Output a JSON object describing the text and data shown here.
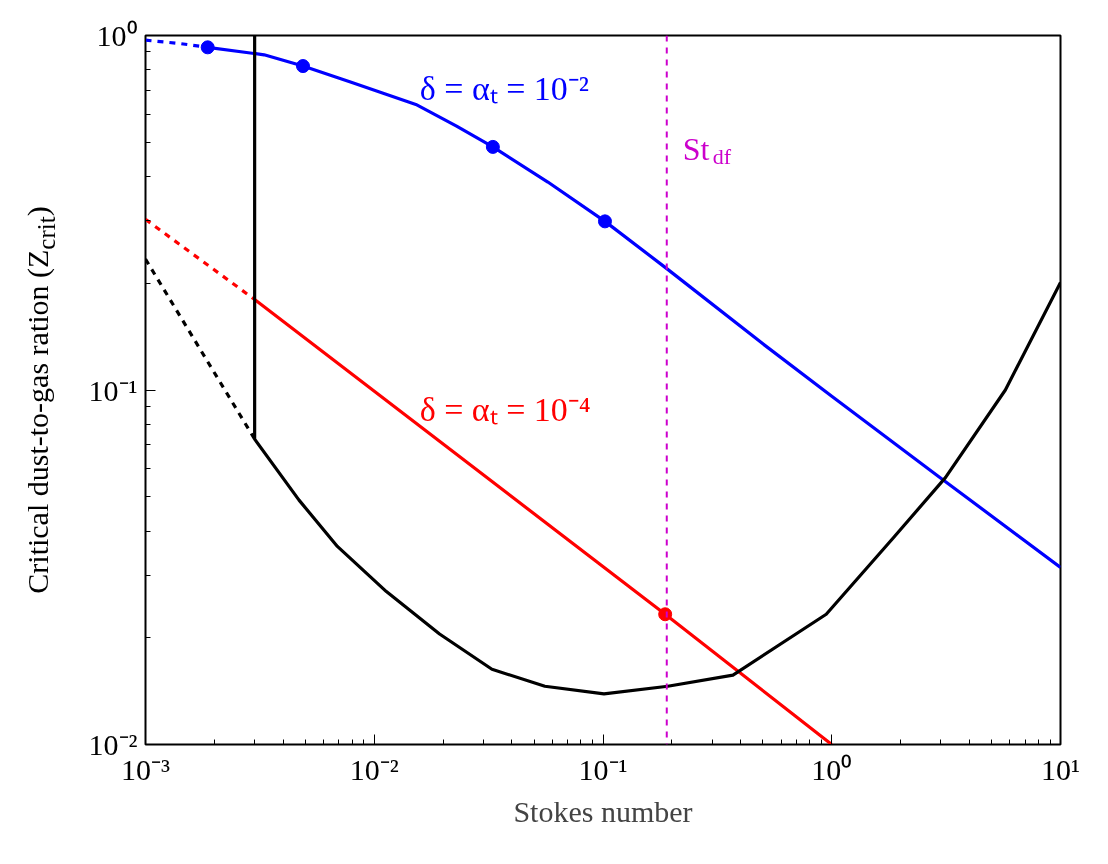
{
  "chart_data": {
    "type": "line",
    "log": "xy",
    "xlabel": "Stokes number",
    "ylabel": "Critical dust-to-gas ration (Z$_{crit}$)",
    "xlim": [
      0.001,
      10
    ],
    "ylim": [
      0.01,
      1
    ],
    "xticks": [
      {
        "value": 0.001,
        "label": "10⁻³"
      },
      {
        "value": 0.01,
        "label": "10⁻²"
      },
      {
        "value": 0.1,
        "label": "10⁻¹"
      },
      {
        "value": 1,
        "label": "10⁰"
      },
      {
        "value": 10,
        "label": "10¹"
      }
    ],
    "yticks": [
      {
        "value": 0.01,
        "label": "10⁻²"
      },
      {
        "value": 0.1,
        "label": "10⁻¹"
      },
      {
        "value": 1,
        "label": "10⁰"
      }
    ],
    "grid": false,
    "series": [
      {
        "color": "#0000ff",
        "line_style": "dashed",
        "x": [
          0.001,
          0.0014,
          0.00187
        ],
        "values": [
          0.97,
          0.95,
          0.926
        ]
      },
      {
        "name": "δ = αₜ = 10⁻²",
        "color": "#0000ff",
        "line_style": "solid",
        "x": [
          0.00187,
          0.0033,
          0.00488,
          0.00793,
          0.0152,
          0.0229,
          0.033,
          0.0574,
          0.102,
          0.19,
          0.5,
          1,
          2.9,
          10
        ],
        "values": [
          0.926,
          0.882,
          0.82,
          0.738,
          0.639,
          0.555,
          0.485,
          0.386,
          0.299,
          0.22,
          0.135,
          0.096,
          0.0573,
          0.0316
        ]
      },
      {
        "type": "scatter",
        "color": "#0000ff",
        "marker": "circle",
        "x": [
          0.00187,
          0.00488,
          0.033,
          0.102
        ],
        "values": [
          0.926,
          0.82,
          0.485,
          0.299
        ]
      },
      {
        "color": "#ff0000",
        "line_style": "dashed",
        "x": [
          0.001,
          0.003
        ],
        "values": [
          0.303,
          0.18
        ]
      },
      {
        "name": "δ = αₜ = 10⁻⁴",
        "color": "#ff0000",
        "line_style": "solid",
        "x": [
          0.003,
          0.187,
          1
        ],
        "values": [
          0.18,
          0.0233,
          0.01
        ]
      },
      {
        "type": "scatter",
        "color": "#ff0000",
        "marker": "circle",
        "x": [
          0.187
        ],
        "values": [
          0.0233
        ]
      },
      {
        "color": "#000000",
        "line_style": "dashed",
        "x": [
          0.001,
          0.003
        ],
        "values": [
          0.234,
          0.0727
        ]
      },
      {
        "color": "#000000",
        "line_style": "solid",
        "x": [
          0.003,
          0.003,
          0.00469,
          0.0069,
          0.0113,
          0.0193,
          0.0327,
          0.0557,
          0.101,
          0.192,
          0.37,
          0.946,
          1.86,
          3.14,
          5.74,
          10
        ],
        "values": [
          1.0,
          0.0727,
          0.0489,
          0.0362,
          0.027,
          0.0205,
          0.0163,
          0.0146,
          0.0139,
          0.0146,
          0.0157,
          0.0233,
          0.0383,
          0.0566,
          0.1,
          0.201
        ]
      }
    ],
    "ref_lines": [
      {
        "axis": "x",
        "value": 0.19,
        "label": "St$_{df}$",
        "color": "#cc00cc",
        "line_style": "dashed"
      }
    ]
  }
}
